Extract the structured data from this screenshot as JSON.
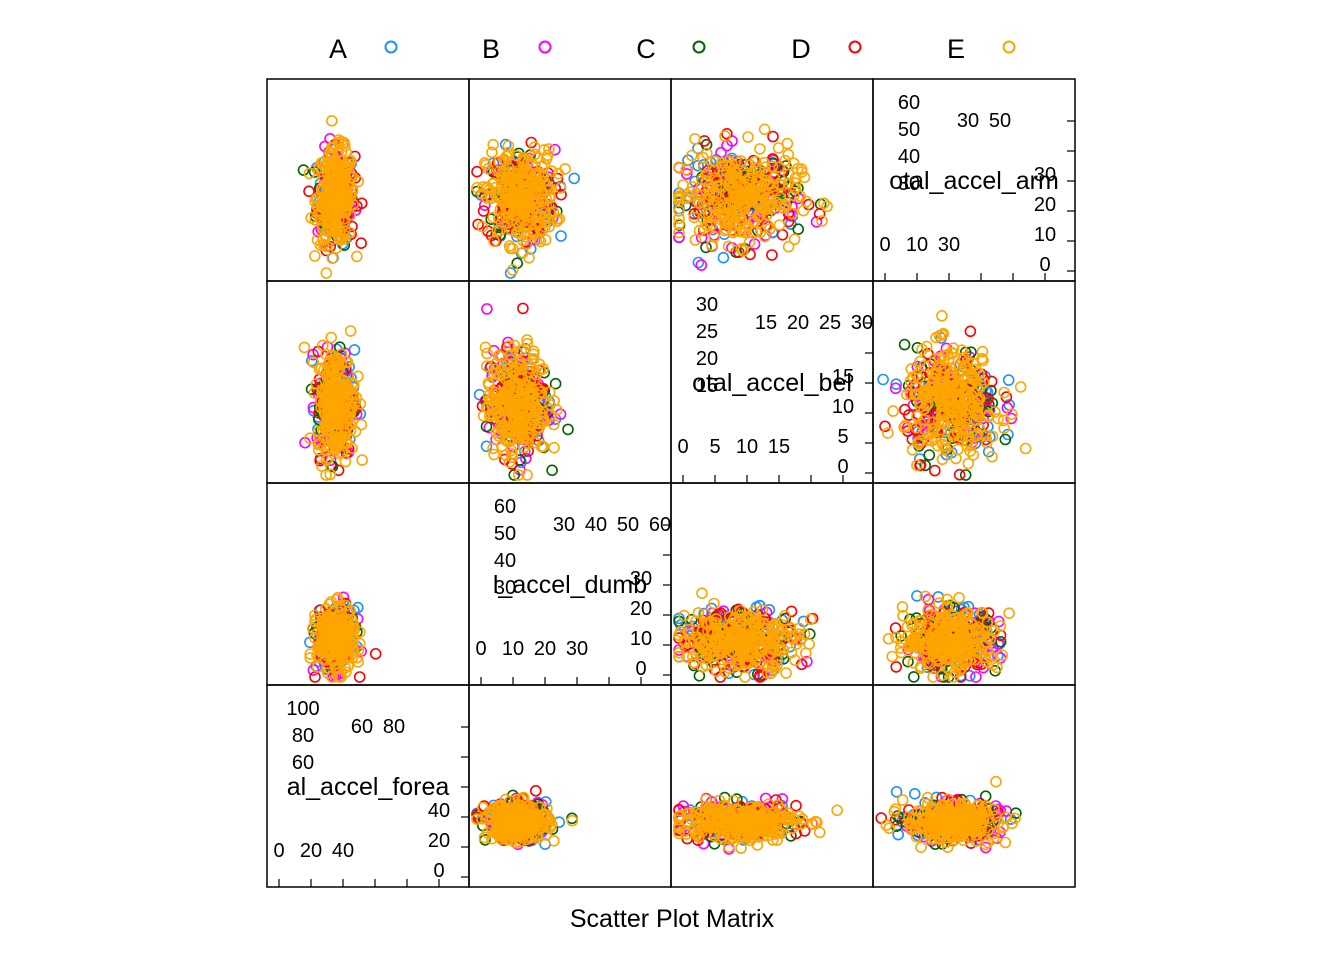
{
  "chart_data": {
    "type": "scatter",
    "subtype": "scatter-plot-matrix",
    "xlabel": "Scatter Plot Matrix",
    "legend": {
      "position": "top",
      "entries": [
        {
          "name": "A",
          "color": "#1E90FF"
        },
        {
          "name": "B",
          "color": "#FF00FF"
        },
        {
          "name": "C",
          "color": "#006400"
        },
        {
          "name": "D",
          "color": "#FF0000"
        },
        {
          "name": "E",
          "color": "#FFA500"
        }
      ]
    },
    "variables": [
      {
        "name": "total_accel_forearm",
        "label": "al_accel_forea",
        "range": [
          0,
          110
        ],
        "ticks_low": [
          "0",
          "20",
          "40"
        ],
        "ticks_high": [
          "60",
          "80",
          "100"
        ],
        "diag_high_top": [
          "100",
          "80",
          "60"
        ],
        "diag_high_bottom": [
          "60",
          "80"
        ]
      },
      {
        "name": "total_accel_dumbbell",
        "label": "l_accel_dumb",
        "range": [
          0,
          60
        ],
        "ticks_low": [
          "0",
          "10",
          "20",
          "30"
        ],
        "ticks_high": [
          "30",
          "40",
          "50",
          "60"
        ],
        "diag_high_top": [
          "60",
          "50",
          "40"
        ],
        "diag_high_bottom": [
          "30",
          "40",
          "50",
          "60"
        ]
      },
      {
        "name": "total_accel_belt",
        "label": "otal_accel_bel",
        "range": [
          0,
          31
        ],
        "ticks_low": [
          "0",
          "5",
          "10",
          "15"
        ],
        "ticks_high": [
          "15",
          "20",
          "25",
          "30"
        ],
        "diag_high_top": [
          "30",
          "25",
          "20"
        ],
        "diag_high_bottom": [
          "15",
          "20",
          "25",
          "30"
        ]
      },
      {
        "name": "total_accel_arm",
        "label": "otal_accel_arm",
        "range": [
          0,
          66
        ],
        "ticks_low": [
          "0",
          "10",
          "30"
        ],
        "ticks_high": [
          "30",
          "50"
        ],
        "diag_high_top": [
          "60",
          "50",
          "40"
        ],
        "diag_high_bottom": [
          "30",
          "50"
        ]
      }
    ],
    "diagonal_axis_labels": {
      "arm": {
        "left_top": [
          "60",
          "50",
          "40",
          "30"
        ],
        "right": [
          "30",
          "20",
          "10",
          "0"
        ],
        "top": [
          "30",
          "50"
        ],
        "bottom": [
          "0",
          "10",
          "30"
        ]
      },
      "belt": {
        "left_top": [
          "30",
          "25",
          "20",
          "15"
        ],
        "right": [
          "15",
          "10",
          "5",
          "0"
        ],
        "top": [
          "15",
          "20",
          "25",
          "30"
        ],
        "bottom": [
          "0",
          "5",
          "10",
          "15"
        ]
      },
      "dumbbell": {
        "left_top": [
          "60",
          "50",
          "40",
          "30"
        ],
        "right": [
          "30",
          "20",
          "10",
          "0"
        ],
        "top": [
          "30",
          "40",
          "50",
          "60"
        ],
        "bottom": [
          "0",
          "10",
          "20",
          "30"
        ]
      },
      "forearm": {
        "left_top": [
          "100",
          "80",
          "60"
        ],
        "right": [
          "40",
          "20",
          "0"
        ],
        "top": [
          "60",
          "80"
        ],
        "bottom": [
          "0",
          "20",
          "40"
        ]
      }
    },
    "cluster_summary": [
      {
        "x": "total_accel_forearm",
        "y": "total_accel_arm",
        "x_center": 36,
        "y_center": 27,
        "x_spread": 10,
        "y_spread": 15
      },
      {
        "x": "total_accel_dumbbell",
        "y": "total_accel_arm",
        "x_center": 14,
        "y_center": 27,
        "x_spread": 10,
        "y_spread": 15
      },
      {
        "x": "total_accel_belt",
        "y": "total_accel_arm",
        "x_center": 10,
        "y_center": 27,
        "x_spread": 9,
        "y_spread": 15
      },
      {
        "x": "total_accel_forearm",
        "y": "total_accel_belt",
        "x_center": 36,
        "y_center": 12,
        "x_spread": 10,
        "y_spread": 8
      },
      {
        "x": "total_accel_dumbbell",
        "y": "total_accel_belt",
        "x_center": 13,
        "y_center": 12,
        "x_spread": 9,
        "y_spread": 8
      },
      {
        "x": "total_accel_arm",
        "y": "total_accel_belt",
        "x_center": 25,
        "y_center": 12,
        "x_spread": 15,
        "y_spread": 8
      },
      {
        "x": "total_accel_forearm",
        "y": "total_accel_dumbbell",
        "x_center": 36,
        "y_center": 12,
        "x_spread": 10,
        "y_spread": 9
      },
      {
        "x": "total_accel_belt",
        "y": "total_accel_dumbbell",
        "x_center": 10,
        "y_center": 12,
        "x_spread": 9,
        "y_spread": 9
      },
      {
        "x": "total_accel_arm",
        "y": "total_accel_dumbbell",
        "x_center": 25,
        "y_center": 12,
        "x_spread": 15,
        "y_spread": 9
      },
      {
        "x": "total_accel_dumbbell",
        "y": "total_accel_forearm",
        "x_center": 13,
        "y_center": 34,
        "x_spread": 9,
        "y_spread": 10
      },
      {
        "x": "total_accel_belt",
        "y": "total_accel_forearm",
        "x_center": 10,
        "y_center": 34,
        "x_spread": 9,
        "y_spread": 10
      },
      {
        "x": "total_accel_arm",
        "y": "total_accel_forearm",
        "x_center": 25,
        "y_center": 34,
        "x_spread": 15,
        "y_spread": 10
      }
    ]
  }
}
